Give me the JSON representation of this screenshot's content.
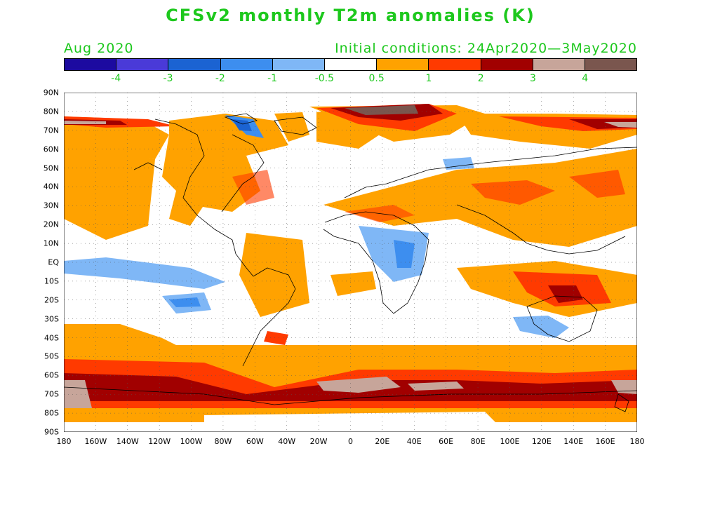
{
  "title": "CFSv2 monthly T2m anomalies (K)",
  "valid_month": "Aug 2020",
  "initial_conditions": "Initial conditions: 24Apr2020—3May2020",
  "colorbar": {
    "colors": [
      "#1c0aa0",
      "#4a3ad8",
      "#1b63d2",
      "#3d8eef",
      "#7fb7f6",
      "#ffffff",
      "#ffa200",
      "#ff3a00",
      "#a10000",
      "#c7a59a",
      "#7a564e"
    ],
    "labels": [
      "-4",
      "-3",
      "-2",
      "-1",
      "-0.5",
      "0.5",
      "1",
      "2",
      "3",
      "4"
    ]
  },
  "axes": {
    "lat_labels": [
      "90N",
      "80N",
      "70N",
      "60N",
      "50N",
      "40N",
      "30N",
      "20N",
      "10N",
      "EQ",
      "10S",
      "20S",
      "30S",
      "40S",
      "50S",
      "60S",
      "70S",
      "80S",
      "90S"
    ],
    "lon_labels": [
      "180",
      "160W",
      "140W",
      "120W",
      "100W",
      "80W",
      "60W",
      "40W",
      "20W",
      "0",
      "20E",
      "40E",
      "60E",
      "80E",
      "100E",
      "120E",
      "140E",
      "160E",
      "180"
    ]
  }
}
